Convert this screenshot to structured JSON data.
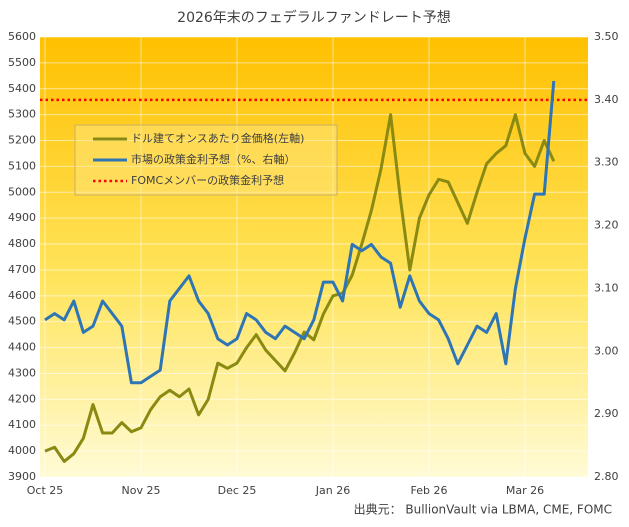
{
  "chart_data": {
    "type": "line",
    "title": "2026年末のフェデラルファンドレート予想",
    "source": "出典元： BullionVault via LBMA, CME, FOMC",
    "categories": [
      "Oct 25",
      null,
      null,
      null,
      null,
      null,
      null,
      null,
      null,
      null,
      "Nov 25",
      null,
      null,
      null,
      null,
      null,
      null,
      null,
      null,
      null,
      "Dec 25",
      null,
      null,
      null,
      null,
      null,
      null,
      null,
      null,
      null,
      "Jan 26",
      null,
      null,
      null,
      null,
      null,
      null,
      null,
      null,
      null,
      "Feb 26",
      null,
      null,
      null,
      null,
      null,
      null,
      null,
      null,
      null,
      "Mar 26",
      null,
      null,
      null
    ],
    "series": [
      {
        "name": "ドル建てオンスあたり金価格(左軸)",
        "color": "#8a8a12",
        "axis": "y",
        "values": [
          4000,
          4015,
          3960,
          3990,
          4050,
          4180,
          4070,
          4070,
          4110,
          4075,
          4090,
          4160,
          4210,
          4235,
          4210,
          4240,
          4140,
          4200,
          4340,
          4320,
          4340,
          4400,
          4450,
          4390,
          4350,
          4310,
          4380,
          4460,
          4430,
          4530,
          4600,
          4610,
          4680,
          4800,
          4930,
          5090,
          5300,
          4980,
          4700,
          4900,
          4990,
          5050,
          5040,
          4960,
          4880,
          5000,
          5110,
          5150,
          5180,
          5300,
          5150,
          5100,
          5200,
          5120
        ]
      },
      {
        "name": "市場の政策金利予想（%、右軸）",
        "color": "#2e75b6",
        "axis": "y2",
        "values": [
          3.05,
          3.06,
          3.05,
          3.08,
          3.03,
          3.04,
          3.08,
          3.06,
          3.04,
          2.95,
          2.95,
          2.96,
          2.97,
          3.08,
          3.1,
          3.12,
          3.08,
          3.06,
          3.02,
          3.01,
          3.02,
          3.06,
          3.05,
          3.03,
          3.02,
          3.04,
          3.03,
          3.02,
          3.05,
          3.11,
          3.11,
          3.08,
          3.17,
          3.16,
          3.17,
          3.15,
          3.14,
          3.07,
          3.12,
          3.08,
          3.06,
          3.05,
          3.02,
          2.98,
          3.01,
          3.04,
          3.03,
          3.06,
          2.98,
          3.1,
          3.18,
          3.25,
          3.25,
          3.43
        ]
      }
    ],
    "reference_line": {
      "name": "FOMCメンバーの政策金利予想",
      "color": "#ff0000",
      "axis": "y2",
      "value": 3.4
    },
    "ylim": [
      3900,
      5600
    ],
    "yticks": [
      3900,
      4000,
      4100,
      4200,
      4300,
      4400,
      4500,
      4600,
      4700,
      4800,
      4900,
      5000,
      5100,
      5200,
      5300,
      5400,
      5500,
      5600
    ],
    "y2lim": [
      2.8,
      3.5
    ],
    "y2ticks": [
      {
        "value": 2.8,
        "label": "2.80"
      },
      {
        "value": 2.9,
        "label": "2.90"
      },
      {
        "value": 3.0,
        "label": "3.00"
      },
      {
        "value": 3.1,
        "label": "3.10"
      },
      {
        "value": 3.2,
        "label": "3.20"
      },
      {
        "value": 3.3,
        "label": "3.30"
      },
      {
        "value": 3.4,
        "label": "3.40"
      },
      {
        "value": 3.5,
        "label": "3.50"
      }
    ],
    "grid": true
  }
}
